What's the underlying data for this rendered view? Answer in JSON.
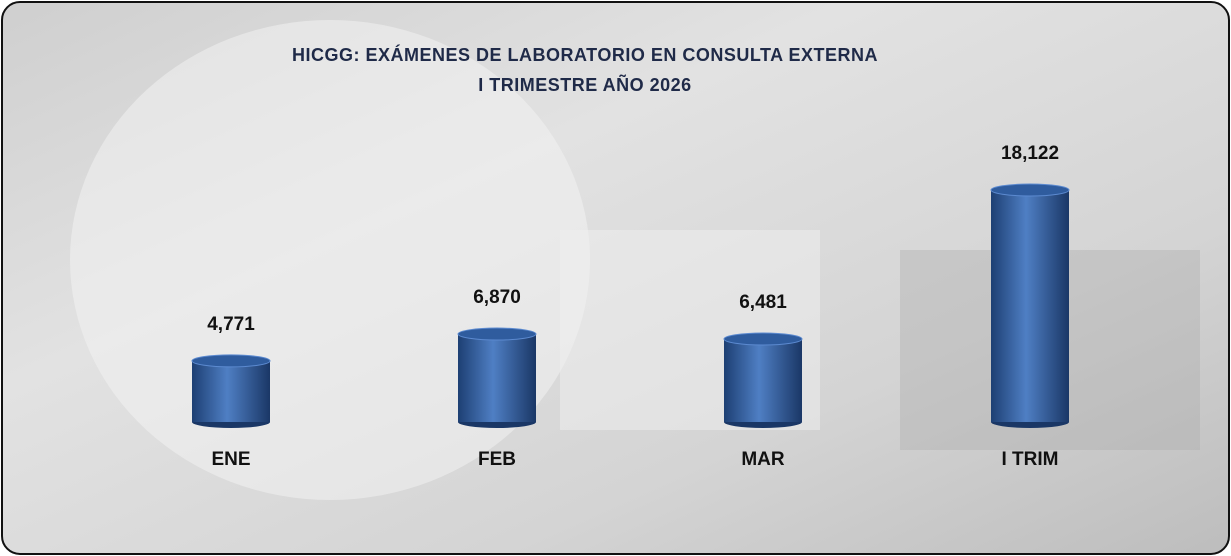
{
  "chart_data": {
    "type": "bar",
    "title": "HICGG: EXÁMENES DE LABORATORIO EN CONSULTA EXTERNA",
    "subtitle": "I TRIMESTRE AÑO 2026",
    "categories": [
      "ENE",
      "FEB",
      "MAR",
      "I TRIM"
    ],
    "values": [
      4771,
      6870,
      6481,
      18122
    ],
    "value_labels": [
      "4,771",
      "6,870",
      "6,481",
      "18,122"
    ],
    "color": "#2f5c9e"
  }
}
